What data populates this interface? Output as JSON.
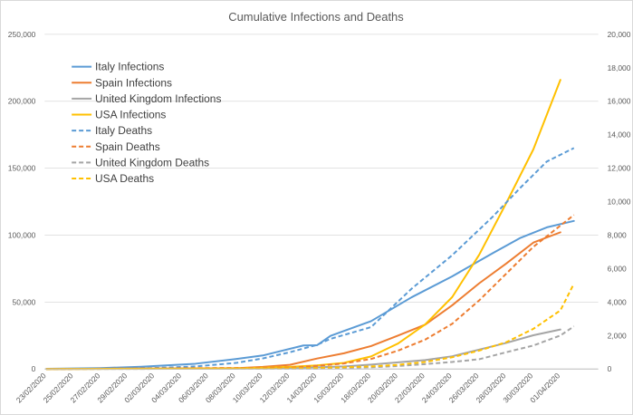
{
  "chart_data": {
    "type": "line",
    "title": "Cumulative Infections and Deaths",
    "xlabel": "",
    "ylabel": "",
    "x_ticks": [
      "23/02/2020",
      "25/02/2020",
      "27/02/2020",
      "29/02/2020",
      "02/03/2020",
      "04/03/2020",
      "06/03/2020",
      "08/03/2020",
      "10/03/2020",
      "12/03/2020",
      "14/03/2020",
      "16/03/2020",
      "18/03/2020",
      "20/03/2020",
      "22/03/2020",
      "24/03/2020",
      "26/03/2020",
      "28/03/2020",
      "30/03/2020",
      "01/04/2020"
    ],
    "x_range": [
      "23/02/2020",
      "03/04/2020"
    ],
    "ylim_left": [
      0,
      250000
    ],
    "ylim_right": [
      0,
      20000
    ],
    "left_ticks": [
      "0",
      "50,000",
      "100,000",
      "150,000",
      "200,000",
      "250,000"
    ],
    "right_ticks": [
      "0",
      "2,000",
      "4,000",
      "6,000",
      "8,000",
      "10,000",
      "12,000",
      "14,000",
      "16,000",
      "18,000",
      "20,000"
    ],
    "grid": true,
    "legend_position": "top-left",
    "series": [
      {
        "name": "Italy Infections",
        "axis": "left",
        "color": "#5b9bd5",
        "dash": false,
        "points": [
          [
            "23/02/2020",
            150
          ],
          [
            "27/02/2020",
            650
          ],
          [
            "01/03/2020",
            1700
          ],
          [
            "05/03/2020",
            3900
          ],
          [
            "08/03/2020",
            7400
          ],
          [
            "10/03/2020",
            10100
          ],
          [
            "13/03/2020",
            17600
          ],
          [
            "14/03/2020",
            17700
          ],
          [
            "15/03/2020",
            24700
          ],
          [
            "18/03/2020",
            35700
          ],
          [
            "21/03/2020",
            53600
          ],
          [
            "24/03/2020",
            69200
          ],
          [
            "27/03/2020",
            86500
          ],
          [
            "29/03/2020",
            97700
          ],
          [
            "31/03/2020",
            105800
          ],
          [
            "02/04/2020",
            110600
          ]
        ]
      },
      {
        "name": "Spain Infections",
        "axis": "left",
        "color": "#ed7d31",
        "dash": false,
        "points": [
          [
            "23/02/2020",
            0
          ],
          [
            "08/03/2020",
            600
          ],
          [
            "10/03/2020",
            1600
          ],
          [
            "12/03/2020",
            3100
          ],
          [
            "14/03/2020",
            7800
          ],
          [
            "16/03/2020",
            11700
          ],
          [
            "18/03/2020",
            17100
          ],
          [
            "20/03/2020",
            25000
          ],
          [
            "22/03/2020",
            33100
          ],
          [
            "24/03/2020",
            47600
          ],
          [
            "26/03/2020",
            64000
          ],
          [
            "28/03/2020",
            78800
          ],
          [
            "30/03/2020",
            94400
          ],
          [
            "01/04/2020",
            102100
          ]
        ]
      },
      {
        "name": "United Kingdom Infections",
        "axis": "left",
        "color": "#a5a5a5",
        "dash": false,
        "points": [
          [
            "23/02/2020",
            0
          ],
          [
            "08/03/2020",
            200
          ],
          [
            "12/03/2020",
            600
          ],
          [
            "14/03/2020",
            1200
          ],
          [
            "16/03/2020",
            1900
          ],
          [
            "18/03/2020",
            3300
          ],
          [
            "20/03/2020",
            5000
          ],
          [
            "22/03/2020",
            6700
          ],
          [
            "24/03/2020",
            9500
          ],
          [
            "26/03/2020",
            14500
          ],
          [
            "28/03/2020",
            19500
          ],
          [
            "30/03/2020",
            25200
          ],
          [
            "01/04/2020",
            29500
          ]
        ]
      },
      {
        "name": "USA Infections",
        "axis": "left",
        "color": "#ffc000",
        "dash": false,
        "points": [
          [
            "23/02/2020",
            0
          ],
          [
            "08/03/2020",
            400
          ],
          [
            "12/03/2020",
            1600
          ],
          [
            "14/03/2020",
            2700
          ],
          [
            "16/03/2020",
            4600
          ],
          [
            "18/03/2020",
            9400
          ],
          [
            "20/03/2020",
            19100
          ],
          [
            "22/03/2020",
            33300
          ],
          [
            "24/03/2020",
            53700
          ],
          [
            "26/03/2020",
            85400
          ],
          [
            "28/03/2020",
            124000
          ],
          [
            "30/03/2020",
            164000
          ],
          [
            "01/04/2020",
            216000
          ]
        ]
      },
      {
        "name": "Italy Deaths",
        "axis": "right",
        "color": "#5b9bd5",
        "dash": true,
        "points": [
          [
            "23/02/2020",
            0
          ],
          [
            "01/03/2020",
            30
          ],
          [
            "05/03/2020",
            150
          ],
          [
            "08/03/2020",
            360
          ],
          [
            "10/03/2020",
            630
          ],
          [
            "12/03/2020",
            1000
          ],
          [
            "14/03/2020",
            1440
          ],
          [
            "15/03/2020",
            1800
          ],
          [
            "18/03/2020",
            2500
          ],
          [
            "21/03/2020",
            4800
          ],
          [
            "24/03/2020",
            6800
          ],
          [
            "27/03/2020",
            9100
          ],
          [
            "29/03/2020",
            10800
          ],
          [
            "31/03/2020",
            12400
          ],
          [
            "02/04/2020",
            13200
          ]
        ]
      },
      {
        "name": "Spain Deaths",
        "axis": "right",
        "color": "#ed7d31",
        "dash": true,
        "points": [
          [
            "23/02/2020",
            0
          ],
          [
            "12/03/2020",
            80
          ],
          [
            "14/03/2020",
            190
          ],
          [
            "16/03/2020",
            330
          ],
          [
            "18/03/2020",
            600
          ],
          [
            "20/03/2020",
            1100
          ],
          [
            "22/03/2020",
            1750
          ],
          [
            "24/03/2020",
            2700
          ],
          [
            "26/03/2020",
            4100
          ],
          [
            "28/03/2020",
            5700
          ],
          [
            "30/03/2020",
            7300
          ],
          [
            "02/04/2020",
            9200
          ]
        ]
      },
      {
        "name": "United Kingdom Deaths",
        "axis": "right",
        "color": "#a5a5a5",
        "dash": true,
        "points": [
          [
            "23/02/2020",
            0
          ],
          [
            "14/03/2020",
            20
          ],
          [
            "16/03/2020",
            55
          ],
          [
            "18/03/2020",
            100
          ],
          [
            "20/03/2020",
            180
          ],
          [
            "22/03/2020",
            290
          ],
          [
            "24/03/2020",
            420
          ],
          [
            "26/03/2020",
            580
          ],
          [
            "28/03/2020",
            1000
          ],
          [
            "30/03/2020",
            1400
          ],
          [
            "01/04/2020",
            2000
          ],
          [
            "02/04/2020",
            2550
          ]
        ]
      },
      {
        "name": "USA Deaths",
        "axis": "right",
        "color": "#ffc000",
        "dash": true,
        "points": [
          [
            "23/02/2020",
            0
          ],
          [
            "12/03/2020",
            40
          ],
          [
            "14/03/2020",
            60
          ],
          [
            "16/03/2020",
            100
          ],
          [
            "18/03/2020",
            150
          ],
          [
            "20/03/2020",
            250
          ],
          [
            "22/03/2020",
            420
          ],
          [
            "24/03/2020",
            700
          ],
          [
            "26/03/2020",
            1100
          ],
          [
            "28/03/2020",
            1600
          ],
          [
            "30/03/2020",
            2400
          ],
          [
            "01/04/2020",
            3500
          ],
          [
            "02/04/2020",
            5100
          ]
        ]
      }
    ]
  }
}
